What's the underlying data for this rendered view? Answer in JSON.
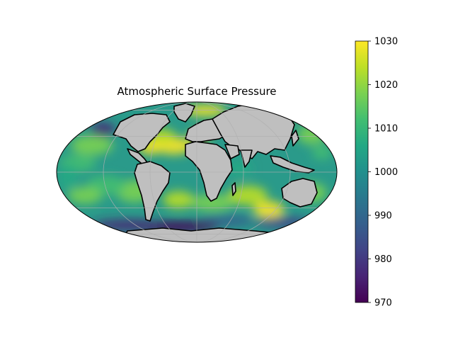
{
  "map": {
    "title": "Atmospheric Surface Pressure",
    "projection": "mollweide",
    "colormap": "viridis",
    "land_color": "#bfbfbf",
    "coastline_color": "#000000",
    "gridline_color": "#b0b0b0",
    "gridlines": true
  },
  "colorbar": {
    "min": 970,
    "max": 1030,
    "ticks": [
      "970",
      "980",
      "990",
      "1000",
      "1010",
      "1020",
      "1030"
    ]
  },
  "colormap_stops": [
    "#440154",
    "#482475",
    "#414487",
    "#355f8d",
    "#2a788e",
    "#21908d",
    "#22a884",
    "#42be71",
    "#7ad151",
    "#bddf26",
    "#fde725"
  ]
}
